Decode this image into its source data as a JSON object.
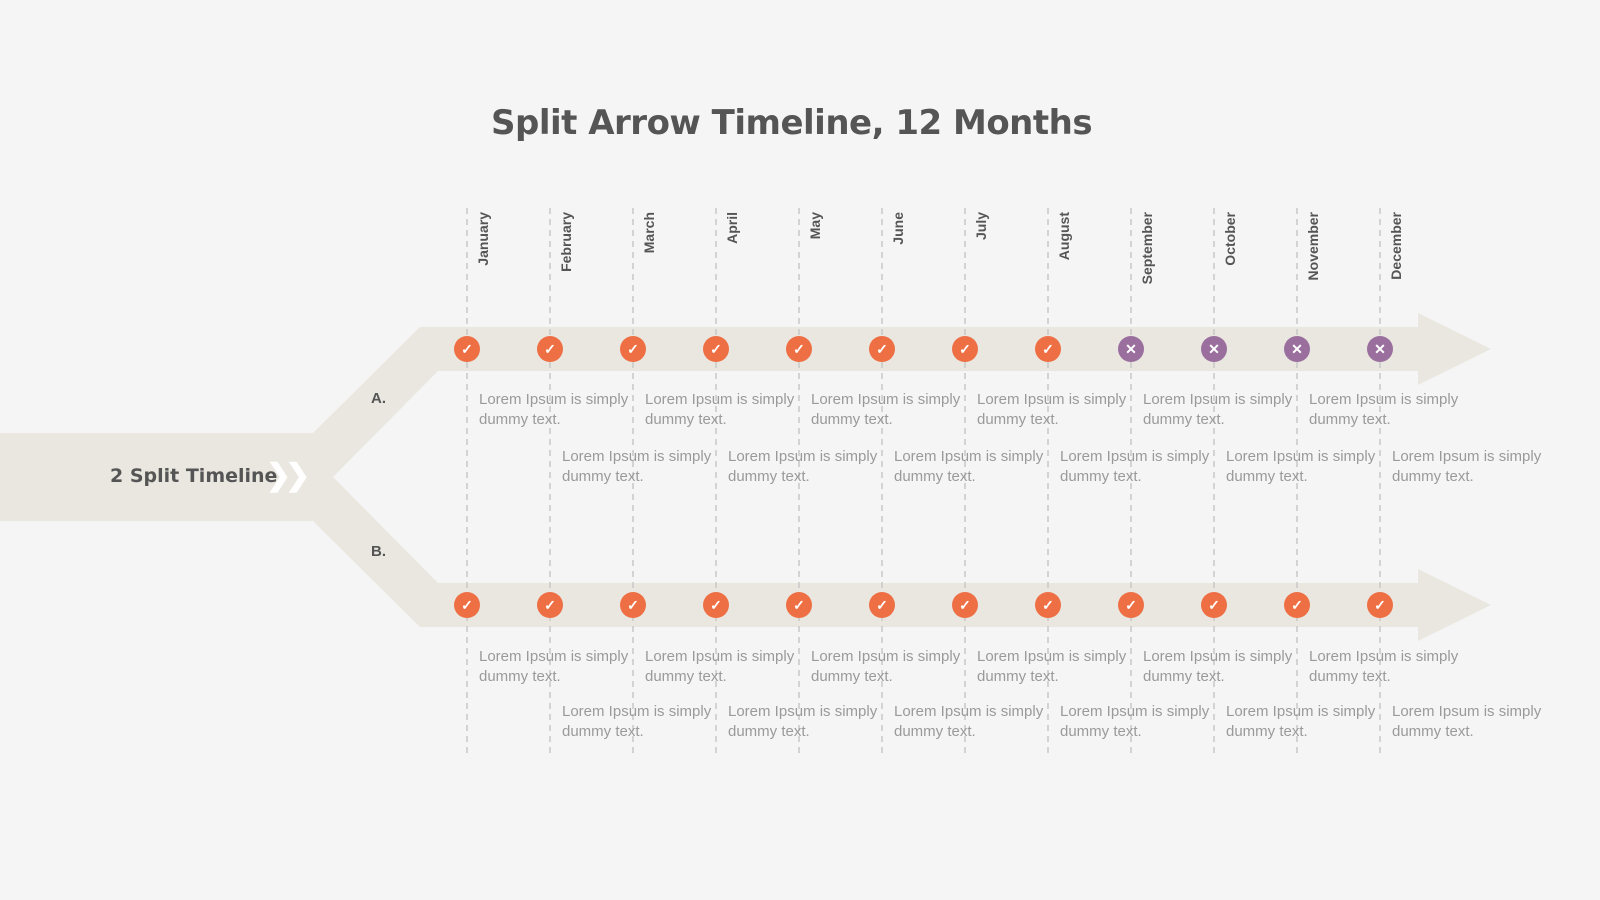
{
  "title": "Split Arrow Timeline, 12 Months",
  "main_label": "2 Split Timeline",
  "main_label_icon": "double-chevron-right-icon",
  "branches": [
    {
      "label": "A.",
      "statuses": [
        "done",
        "done",
        "done",
        "done",
        "done",
        "done",
        "done",
        "done",
        "pending",
        "pending",
        "pending",
        "pending"
      ],
      "descriptions": [
        "Lorem Ipsum is simply dummy text.",
        "Lorem Ipsum is simply dummy text.",
        "Lorem Ipsum is simply dummy text.",
        "Lorem Ipsum is simply dummy text.",
        "Lorem Ipsum is simply dummy text.",
        "Lorem Ipsum is simply dummy text.",
        "Lorem Ipsum is simply dummy text.",
        "Lorem Ipsum is simply dummy text.",
        "Lorem Ipsum is simply dummy text.",
        "Lorem Ipsum is simply dummy text.",
        "Lorem Ipsum is simply dummy text.",
        "Lorem Ipsum is simply dummy text."
      ]
    },
    {
      "label": "B.",
      "statuses": [
        "done",
        "done",
        "done",
        "done",
        "done",
        "done",
        "done",
        "done",
        "done",
        "done",
        "done",
        "done"
      ],
      "descriptions": [
        "Lorem Ipsum is simply dummy text.",
        "Lorem Ipsum is simply dummy text.",
        "Lorem Ipsum is simply dummy text.",
        "Lorem Ipsum is simply dummy text.",
        "Lorem Ipsum is simply dummy text.",
        "Lorem Ipsum is simply dummy text.",
        "Lorem Ipsum is simply dummy text.",
        "Lorem Ipsum is simply dummy text.",
        "Lorem Ipsum is simply dummy text.",
        "Lorem Ipsum is simply dummy text.",
        "Lorem Ipsum is simply dummy text.",
        "Lorem Ipsum is simply dummy text."
      ]
    }
  ],
  "months": [
    "January",
    "February",
    "March",
    "April",
    "May",
    "June",
    "July",
    "August",
    "September",
    "October",
    "November",
    "December"
  ],
  "status_icons": {
    "done": "check-icon",
    "pending": "x-icon"
  },
  "status_glyphs": {
    "done": "✓",
    "pending": "✕"
  },
  "colors": {
    "background": "#f6f5f5",
    "arrow": "#e9e7e0",
    "done": "#ee6f44",
    "pending": "#9a6f9e",
    "title_text": "#555555",
    "body_text": "#9a9a9a",
    "guide": "#c8c8c8"
  }
}
